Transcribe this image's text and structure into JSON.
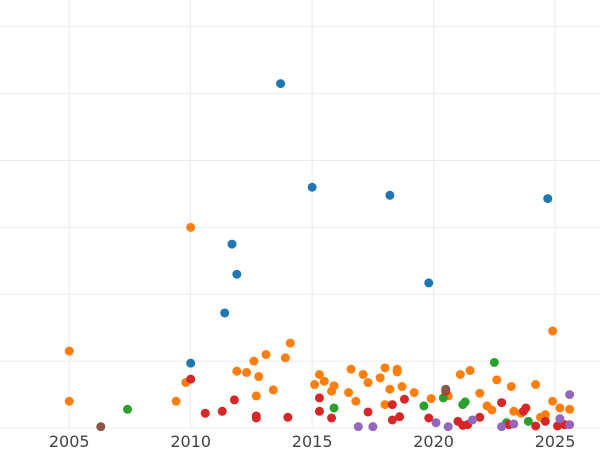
{
  "chart_data": {
    "type": "scatter",
    "title": "",
    "xlabel": "",
    "ylabel": "",
    "xlim": [
      2002.15,
      2026.85
    ],
    "ylim": [
      0,
      6.4
    ],
    "x_ticks": [
      2005,
      2010,
      2015,
      2020,
      2025
    ],
    "x_tick_labels": [
      "2005",
      "2010",
      "2015",
      "2020",
      "2025"
    ],
    "y_gridlines": [
      0,
      1,
      2,
      3,
      4,
      5,
      6
    ],
    "grid": true,
    "legend": "none",
    "series": [
      {
        "color": "#1f77b4",
        "points": [
          {
            "x": 2013.7,
            "y": 5.15
          },
          {
            "x": 2015.0,
            "y": 3.6
          },
          {
            "x": 2018.2,
            "y": 3.48
          },
          {
            "x": 2024.7,
            "y": 3.43
          },
          {
            "x": 2011.7,
            "y": 2.75
          },
          {
            "x": 2011.9,
            "y": 2.3
          },
          {
            "x": 2019.8,
            "y": 2.17
          },
          {
            "x": 2011.4,
            "y": 1.72
          },
          {
            "x": 2010.0,
            "y": 0.97
          }
        ]
      },
      {
        "color": "#ff7f0e",
        "points": [
          {
            "x": 2010.0,
            "y": 3.0
          },
          {
            "x": 2024.9,
            "y": 1.45
          },
          {
            "x": 2005.0,
            "y": 1.15
          },
          {
            "x": 2005.0,
            "y": 0.4
          },
          {
            "x": 2009.4,
            "y": 0.4
          },
          {
            "x": 2009.8,
            "y": 0.68
          },
          {
            "x": 2011.9,
            "y": 0.85
          },
          {
            "x": 2012.3,
            "y": 0.83
          },
          {
            "x": 2012.6,
            "y": 1.0
          },
          {
            "x": 2012.8,
            "y": 0.77
          },
          {
            "x": 2013.1,
            "y": 1.1
          },
          {
            "x": 2013.4,
            "y": 0.57
          },
          {
            "x": 2012.7,
            "y": 0.48
          },
          {
            "x": 2013.9,
            "y": 1.05
          },
          {
            "x": 2014.1,
            "y": 1.27
          },
          {
            "x": 2015.1,
            "y": 0.65
          },
          {
            "x": 2015.3,
            "y": 0.8
          },
          {
            "x": 2015.5,
            "y": 0.7
          },
          {
            "x": 2015.8,
            "y": 0.55
          },
          {
            "x": 2015.9,
            "y": 0.63
          },
          {
            "x": 2016.5,
            "y": 0.53
          },
          {
            "x": 2016.6,
            "y": 0.88
          },
          {
            "x": 2016.8,
            "y": 0.4
          },
          {
            "x": 2017.1,
            "y": 0.8
          },
          {
            "x": 2017.3,
            "y": 0.68
          },
          {
            "x": 2017.8,
            "y": 0.75
          },
          {
            "x": 2018.0,
            "y": 0.9
          },
          {
            "x": 2018.0,
            "y": 0.35
          },
          {
            "x": 2018.2,
            "y": 0.58
          },
          {
            "x": 2018.5,
            "y": 0.88
          },
          {
            "x": 2018.5,
            "y": 0.84
          },
          {
            "x": 2018.7,
            "y": 0.62
          },
          {
            "x": 2019.2,
            "y": 0.53
          },
          {
            "x": 2019.9,
            "y": 0.44
          },
          {
            "x": 2020.6,
            "y": 0.48
          },
          {
            "x": 2021.1,
            "y": 0.8
          },
          {
            "x": 2021.5,
            "y": 0.86
          },
          {
            "x": 2021.9,
            "y": 0.52
          },
          {
            "x": 2022.2,
            "y": 0.33
          },
          {
            "x": 2022.4,
            "y": 0.27
          },
          {
            "x": 2022.6,
            "y": 0.72
          },
          {
            "x": 2023.2,
            "y": 0.62
          },
          {
            "x": 2023.3,
            "y": 0.25
          },
          {
            "x": 2023.6,
            "y": 0.22
          },
          {
            "x": 2024.2,
            "y": 0.65
          },
          {
            "x": 2024.4,
            "y": 0.16
          },
          {
            "x": 2024.6,
            "y": 0.2
          },
          {
            "x": 2024.9,
            "y": 0.4
          },
          {
            "x": 2025.2,
            "y": 0.3
          },
          {
            "x": 2025.6,
            "y": 0.28
          }
        ]
      },
      {
        "color": "#2ca02c",
        "points": [
          {
            "x": 2007.4,
            "y": 0.28
          },
          {
            "x": 2015.9,
            "y": 0.3
          },
          {
            "x": 2019.6,
            "y": 0.33
          },
          {
            "x": 2020.4,
            "y": 0.45
          },
          {
            "x": 2021.2,
            "y": 0.35
          },
          {
            "x": 2021.3,
            "y": 0.39
          },
          {
            "x": 2022.5,
            "y": 0.98
          },
          {
            "x": 2023.0,
            "y": 0.08
          },
          {
            "x": 2023.9,
            "y": 0.1
          }
        ]
      },
      {
        "color": "#d62728",
        "points": [
          {
            "x": 2010.0,
            "y": 0.73
          },
          {
            "x": 2010.6,
            "y": 0.22
          },
          {
            "x": 2011.3,
            "y": 0.25
          },
          {
            "x": 2011.8,
            "y": 0.42
          },
          {
            "x": 2012.7,
            "y": 0.18
          },
          {
            "x": 2012.7,
            "y": 0.15
          },
          {
            "x": 2014.0,
            "y": 0.16
          },
          {
            "x": 2015.3,
            "y": 0.45
          },
          {
            "x": 2015.3,
            "y": 0.25
          },
          {
            "x": 2015.8,
            "y": 0.15
          },
          {
            "x": 2017.3,
            "y": 0.24
          },
          {
            "x": 2018.3,
            "y": 0.35
          },
          {
            "x": 2018.3,
            "y": 0.12
          },
          {
            "x": 2018.6,
            "y": 0.17
          },
          {
            "x": 2018.8,
            "y": 0.43
          },
          {
            "x": 2019.8,
            "y": 0.15
          },
          {
            "x": 2020.5,
            "y": 0.55
          },
          {
            "x": 2021.0,
            "y": 0.1
          },
          {
            "x": 2021.2,
            "y": 0.04
          },
          {
            "x": 2021.4,
            "y": 0.05
          },
          {
            "x": 2021.9,
            "y": 0.16
          },
          {
            "x": 2022.8,
            "y": 0.38
          },
          {
            "x": 2023.1,
            "y": 0.05
          },
          {
            "x": 2023.7,
            "y": 0.25
          },
          {
            "x": 2023.8,
            "y": 0.3
          },
          {
            "x": 2024.2,
            "y": 0.03
          },
          {
            "x": 2024.6,
            "y": 0.1
          },
          {
            "x": 2025.1,
            "y": 0.03
          },
          {
            "x": 2025.4,
            "y": 0.05
          }
        ]
      },
      {
        "color": "#9467bd",
        "points": [
          {
            "x": 2016.9,
            "y": 0.02
          },
          {
            "x": 2017.5,
            "y": 0.02
          },
          {
            "x": 2020.1,
            "y": 0.08
          },
          {
            "x": 2020.6,
            "y": 0.02
          },
          {
            "x": 2021.6,
            "y": 0.12
          },
          {
            "x": 2022.8,
            "y": 0.02
          },
          {
            "x": 2023.3,
            "y": 0.06
          },
          {
            "x": 2025.2,
            "y": 0.14
          },
          {
            "x": 2025.6,
            "y": 0.05
          },
          {
            "x": 2025.6,
            "y": 0.5
          }
        ]
      },
      {
        "color": "#8c564b",
        "points": [
          {
            "x": 2006.3,
            "y": 0.02
          },
          {
            "x": 2020.5,
            "y": 0.58
          }
        ]
      }
    ]
  }
}
